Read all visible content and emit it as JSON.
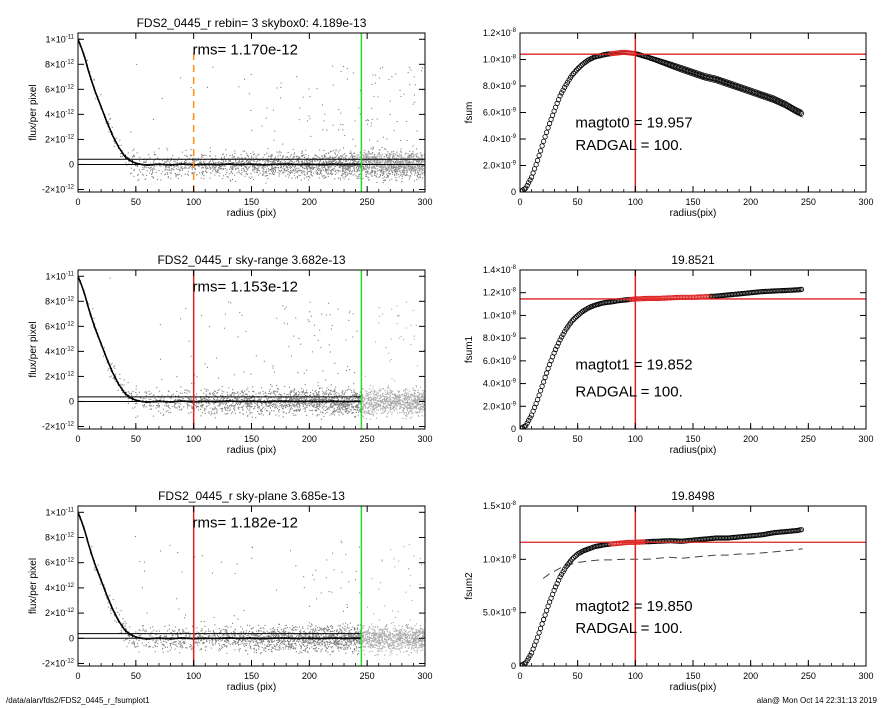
{
  "footer": {
    "path": "/data/alan/fds2/FDS2_0445_r_fsumplot1",
    "stamp": "alan@  Mon Oct 14 22:31:13 2019"
  },
  "chart_data": [
    {
      "id": "p1",
      "type": "scatter",
      "title": "FDS2_0445_r rebin= 3    skybox0:  4.189e-13",
      "annotations": [
        "rms= 1.170e-12"
      ],
      "xlabel": "radius (pix)",
      "ylabel": "flux/per pixel",
      "xlim": [
        0,
        300
      ],
      "ylim": [
        -2.2e-12,
        1.05e-11
      ],
      "xticks": [
        0,
        50,
        100,
        150,
        200,
        250,
        300
      ],
      "xtick_labels": [
        "0",
        "50",
        "100",
        "150",
        "200",
        "250",
        "300"
      ],
      "yticks": [
        -2e-12,
        0,
        2e-12,
        4e-12,
        6e-12,
        8e-12,
        1e-11
      ],
      "ytick_labels": [
        [
          "-2×10",
          "-12"
        ],
        [
          "0",
          ""
        ],
        [
          "2×10",
          "-12"
        ],
        [
          "4×10",
          "-12"
        ],
        [
          "6×10",
          "-12"
        ],
        [
          "8×10",
          "-12"
        ],
        [
          "1×10",
          "-11"
        ]
      ],
      "profile": {
        "x": [
          0,
          3,
          6,
          9,
          12,
          15,
          20,
          25,
          30,
          35,
          40,
          45,
          50,
          55,
          60,
          70,
          80,
          90,
          100,
          110,
          120,
          130,
          140,
          150,
          160,
          170,
          180,
          190,
          200,
          210,
          220,
          230,
          240,
          245
        ],
        "y": [
          1e-11,
          9.3e-12,
          8.5e-12,
          7.5e-12,
          6.6e-12,
          5.8e-12,
          4.6e-12,
          3.4e-12,
          2.3e-12,
          1.4e-12,
          7e-13,
          3e-13,
          1e-13,
          0,
          -5e-14,
          2e-14,
          -4e-14,
          3e-14,
          -3e-14,
          1e-14,
          -2e-14,
          3e-14,
          -1e-14,
          2e-14,
          -3e-14,
          1e-14,
          2e-14,
          -1e-14,
          1e-14,
          -2e-14,
          2e-14,
          -1e-14,
          1e-14,
          0
        ]
      },
      "hlines": [
        {
          "y": 4.189e-13,
          "color": "#000000",
          "x_to": 300
        },
        {
          "y": 0,
          "color": "#000000",
          "x_to": 300
        }
      ],
      "vlines": [
        {
          "x": 100,
          "color": "#ff8c1a",
          "dashed": true
        },
        {
          "x": 245,
          "color": "#22dd22"
        }
      ]
    },
    {
      "id": "p2",
      "type": "line",
      "title": "",
      "annotations": [
        "magtot0 =  19.957",
        "RADGAL =    100."
      ],
      "xlabel": "radius(pix)",
      "ylabel": "fsum",
      "xlim": [
        0,
        300
      ],
      "ylim": [
        0,
        1.2e-08
      ],
      "xticks": [
        0,
        50,
        100,
        150,
        200,
        250,
        300
      ],
      "xtick_labels": [
        "0",
        "50",
        "100",
        "150",
        "200",
        "250",
        "300"
      ],
      "yticks": [
        0,
        2e-09,
        4e-09,
        6e-09,
        8e-09,
        1e-08,
        1.2e-08
      ],
      "ytick_labels": [
        [
          "0",
          ""
        ],
        [
          "2.0×10",
          "-9"
        ],
        [
          "4.0×10",
          "-9"
        ],
        [
          "6.0×10",
          "-9"
        ],
        [
          "8.0×10",
          "-9"
        ],
        [
          "1.0×10",
          "-8"
        ],
        [
          "1.2×10",
          "-8"
        ]
      ],
      "curve": {
        "x": [
          0,
          5,
          10,
          15,
          20,
          25,
          30,
          35,
          40,
          45,
          50,
          55,
          60,
          65,
          70,
          75,
          80,
          85,
          90,
          95,
          100,
          110,
          120,
          130,
          140,
          150,
          160,
          170,
          180,
          190,
          200,
          210,
          220,
          230,
          240,
          245
        ],
        "y": [
          0,
          3e-10,
          1.1e-09,
          2.3e-09,
          3.7e-09,
          5e-09,
          6.2e-09,
          7.3e-09,
          8.1e-09,
          8.8e-09,
          9.3e-09,
          9.7e-09,
          1e-08,
          1.02e-08,
          1.03e-08,
          1.04e-08,
          1.045e-08,
          1.05e-08,
          1.055e-08,
          1.05e-08,
          1.045e-08,
          1.02e-08,
          9.9e-09,
          9.6e-09,
          9.3e-09,
          9e-09,
          8.7e-09,
          8.5e-09,
          8.2e-09,
          7.9e-09,
          7.6e-09,
          7.3e-09,
          7e-09,
          6.6e-09,
          6.1e-09,
          5.9e-09
        ]
      },
      "envelope": 2.5e-10,
      "hline": {
        "y": 1.04e-08,
        "color": "#dd2222"
      },
      "vline": {
        "x": 100,
        "color": "#dd2222"
      },
      "highlight": {
        "x_from": 78,
        "x_to": 102,
        "color": "#dd2222"
      }
    },
    {
      "id": "p3",
      "type": "scatter",
      "title": "FDS2_0445_r sky-range  3.682e-13",
      "annotations": [
        "rms= 1.153e-12"
      ],
      "xlabel": "radius (pix)",
      "ylabel": "flux/per pixel",
      "xlim": [
        0,
        300
      ],
      "ylim": [
        -2.2e-12,
        1.05e-11
      ],
      "xticks": [
        0,
        50,
        100,
        150,
        200,
        250,
        300
      ],
      "xtick_labels": [
        "0",
        "50",
        "100",
        "150",
        "200",
        "250",
        "300"
      ],
      "yticks": [
        -2e-12,
        0,
        2e-12,
        4e-12,
        6e-12,
        8e-12,
        1e-11
      ],
      "ytick_labels": [
        [
          "-2×10",
          "-12"
        ],
        [
          "0",
          ""
        ],
        [
          "2×10",
          "-12"
        ],
        [
          "4×10",
          "-12"
        ],
        [
          "6×10",
          "-12"
        ],
        [
          "8×10",
          "-12"
        ],
        [
          "1×10",
          "-11"
        ]
      ],
      "profile": {
        "x": [
          0,
          3,
          6,
          9,
          12,
          15,
          20,
          25,
          30,
          35,
          40,
          45,
          50,
          55,
          60,
          70,
          80,
          90,
          100,
          110,
          120,
          130,
          140,
          150,
          160,
          170,
          180,
          190,
          200,
          210,
          220,
          230,
          240,
          245
        ],
        "y": [
          1e-11,
          9.3e-12,
          8.5e-12,
          7.5e-12,
          6.6e-12,
          5.8e-12,
          4.6e-12,
          3.4e-12,
          2.3e-12,
          1.4e-12,
          7e-13,
          3e-13,
          1e-13,
          0,
          -5e-14,
          2e-14,
          -4e-14,
          3e-14,
          -3e-14,
          1e-14,
          -2e-14,
          3e-14,
          -1e-14,
          2e-14,
          -3e-14,
          1e-14,
          2e-14,
          -1e-14,
          1e-14,
          -2e-14,
          2e-14,
          -1e-14,
          1e-14,
          0
        ]
      },
      "hlines": [
        {
          "y": 3.682e-13,
          "color": "#000000",
          "x_to": 245
        },
        {
          "y": 0,
          "color": "#000000",
          "x_to": 245
        }
      ],
      "vlines": [
        {
          "x": 100,
          "color": "#dd2222"
        },
        {
          "x": 245,
          "color": "#22dd22"
        }
      ]
    },
    {
      "id": "p4",
      "type": "line",
      "title": "19.8521",
      "annotations": [
        "magtot1 =  19.852",
        "RADGAL =    100."
      ],
      "xlabel": "radius(pix)",
      "ylabel": "fsum1",
      "xlim": [
        0,
        300
      ],
      "ylim": [
        0,
        1.4e-08
      ],
      "xticks": [
        0,
        50,
        100,
        150,
        200,
        250,
        300
      ],
      "xtick_labels": [
        "0",
        "50",
        "100",
        "150",
        "200",
        "250",
        "300"
      ],
      "yticks": [
        0,
        2e-09,
        4e-09,
        6e-09,
        8e-09,
        1e-08,
        1.2e-08,
        1.4e-08
      ],
      "ytick_labels": [
        [
          "0",
          ""
        ],
        [
          "2.0×10",
          "-9"
        ],
        [
          "4.0×10",
          "-9"
        ],
        [
          "6.0×10",
          "-9"
        ],
        [
          "8.0×10",
          "-9"
        ],
        [
          "1.0×10",
          "-8"
        ],
        [
          "1.2×10",
          "-8"
        ],
        [
          "1.4×10",
          "-8"
        ]
      ],
      "curve": {
        "x": [
          0,
          5,
          10,
          15,
          20,
          25,
          30,
          35,
          40,
          45,
          50,
          55,
          60,
          65,
          70,
          75,
          80,
          85,
          90,
          95,
          100,
          110,
          120,
          130,
          140,
          150,
          160,
          170,
          180,
          190,
          200,
          210,
          220,
          230,
          240,
          245
        ],
        "y": [
          0,
          3e-10,
          1.2e-09,
          2.5e-09,
          4e-09,
          5.5e-09,
          6.8e-09,
          7.9e-09,
          8.8e-09,
          9.5e-09,
          1e-08,
          1.04e-08,
          1.07e-08,
          1.09e-08,
          1.105e-08,
          1.115e-08,
          1.12e-08,
          1.13e-08,
          1.135e-08,
          1.14e-08,
          1.145e-08,
          1.15e-08,
          1.15e-08,
          1.155e-08,
          1.16e-08,
          1.16e-08,
          1.165e-08,
          1.17e-08,
          1.18e-08,
          1.19e-08,
          1.2e-08,
          1.21e-08,
          1.215e-08,
          1.22e-08,
          1.225e-08,
          1.23e-08
        ]
      },
      "hline": {
        "y": 1.145e-08,
        "color": "#dd2222"
      },
      "vline": {
        "x": 100,
        "color": "#dd2222"
      },
      "highlight": {
        "x_from": 95,
        "x_to": 165,
        "color": "#dd2222"
      }
    },
    {
      "id": "p5",
      "type": "scatter",
      "title": "FDS2_0445_r sky-plane  3.685e-13",
      "annotations": [
        "rms= 1.182e-12"
      ],
      "xlabel": "radius (pix)",
      "ylabel": "flux/per pixel",
      "xlim": [
        0,
        300
      ],
      "ylim": [
        -2.2e-12,
        1.05e-11
      ],
      "xticks": [
        0,
        50,
        100,
        150,
        200,
        250,
        300
      ],
      "xtick_labels": [
        "0",
        "50",
        "100",
        "150",
        "200",
        "250",
        "300"
      ],
      "yticks": [
        -2e-12,
        0,
        2e-12,
        4e-12,
        6e-12,
        8e-12,
        1e-11
      ],
      "ytick_labels": [
        [
          "-2×10",
          "-12"
        ],
        [
          "0",
          ""
        ],
        [
          "2×10",
          "-12"
        ],
        [
          "4×10",
          "-12"
        ],
        [
          "6×10",
          "-12"
        ],
        [
          "8×10",
          "-12"
        ],
        [
          "1×10",
          "-11"
        ]
      ],
      "profile": {
        "x": [
          0,
          3,
          6,
          9,
          12,
          15,
          20,
          25,
          30,
          35,
          40,
          45,
          50,
          55,
          60,
          70,
          80,
          90,
          100,
          110,
          120,
          130,
          140,
          150,
          160,
          170,
          180,
          190,
          200,
          210,
          220,
          230,
          240,
          245
        ],
        "y": [
          1e-11,
          9.3e-12,
          8.5e-12,
          7.5e-12,
          6.6e-12,
          5.8e-12,
          4.6e-12,
          3.4e-12,
          2.3e-12,
          1.4e-12,
          7e-13,
          3e-13,
          1e-13,
          0,
          -5e-14,
          2e-14,
          -4e-14,
          3e-14,
          -3e-14,
          1e-14,
          -2e-14,
          3e-14,
          -1e-14,
          2e-14,
          -3e-14,
          1e-14,
          2e-14,
          -1e-14,
          1e-14,
          -2e-14,
          2e-14,
          -1e-14,
          1e-14,
          0
        ]
      },
      "hlines": [
        {
          "y": 3.685e-13,
          "color": "#000000",
          "x_to": 245
        },
        {
          "y": 0,
          "color": "#000000",
          "x_to": 245
        }
      ],
      "vlines": [
        {
          "x": 100,
          "color": "#dd2222"
        },
        {
          "x": 245,
          "color": "#22dd22"
        }
      ]
    },
    {
      "id": "p6",
      "type": "line",
      "title": "19.8498",
      "annotations": [
        "magtot2 =  19.850",
        "RADGAL =    100."
      ],
      "xlabel": "radius(pix)",
      "ylabel": "fsum2",
      "xlim": [
        0,
        300
      ],
      "ylim": [
        0,
        1.5e-08
      ],
      "xticks": [
        0,
        50,
        100,
        150,
        200,
        250,
        300
      ],
      "xtick_labels": [
        "0",
        "50",
        "100",
        "150",
        "200",
        "250",
        "300"
      ],
      "yticks": [
        0,
        5e-09,
        1e-08,
        1.5e-08
      ],
      "ytick_labels": [
        [
          "0",
          ""
        ],
        [
          "5.0×10",
          "-9"
        ],
        [
          "1.0×10",
          "-8"
        ],
        [
          "1.5×10",
          "-8"
        ]
      ],
      "curve": {
        "x": [
          0,
          5,
          10,
          15,
          20,
          25,
          30,
          35,
          40,
          45,
          50,
          55,
          60,
          65,
          70,
          75,
          80,
          85,
          90,
          95,
          100,
          110,
          120,
          130,
          140,
          150,
          160,
          170,
          180,
          190,
          200,
          210,
          220,
          230,
          240,
          245
        ],
        "y": [
          0,
          3e-10,
          1.2e-09,
          2.6e-09,
          4.2e-09,
          5.8e-09,
          7.2e-09,
          8.4e-09,
          9.3e-09,
          1e-08,
          1.05e-08,
          1.08e-08,
          1.1e-08,
          1.12e-08,
          1.13e-08,
          1.14e-08,
          1.145e-08,
          1.15e-08,
          1.155e-08,
          1.16e-08,
          1.16e-08,
          1.165e-08,
          1.17e-08,
          1.175e-08,
          1.17e-08,
          1.18e-08,
          1.19e-08,
          1.2e-08,
          1.2e-08,
          1.21e-08,
          1.22e-08,
          1.23e-08,
          1.25e-08,
          1.26e-08,
          1.27e-08,
          1.28e-08
        ]
      },
      "dashed": {
        "x": [
          20,
          25,
          30,
          35,
          40,
          50,
          60,
          70,
          80,
          90,
          100,
          110,
          120,
          130,
          140,
          150,
          160,
          170,
          180,
          190,
          200,
          210,
          220,
          230,
          240,
          245
        ],
        "y": [
          8.2e-09,
          8.6e-09,
          8.9e-09,
          9.2e-09,
          9.4e-09,
          9.7e-09,
          9.85e-09,
          9.95e-09,
          9.95e-09,
          1e-08,
          1e-08,
          1e-08,
          1.01e-08,
          1.02e-08,
          1.01e-08,
          1.02e-08,
          1.03e-08,
          1.04e-08,
          1.04e-08,
          1.05e-08,
          1.05e-08,
          1.06e-08,
          1.07e-08,
          1.08e-08,
          1.09e-08,
          1.1e-08
        ]
      },
      "hline": {
        "y": 1.16e-08,
        "color": "#dd2222"
      },
      "vline": {
        "x": 100,
        "color": "#dd2222"
      },
      "highlight": {
        "x_from": 78,
        "x_to": 110,
        "color": "#dd2222"
      }
    }
  ]
}
